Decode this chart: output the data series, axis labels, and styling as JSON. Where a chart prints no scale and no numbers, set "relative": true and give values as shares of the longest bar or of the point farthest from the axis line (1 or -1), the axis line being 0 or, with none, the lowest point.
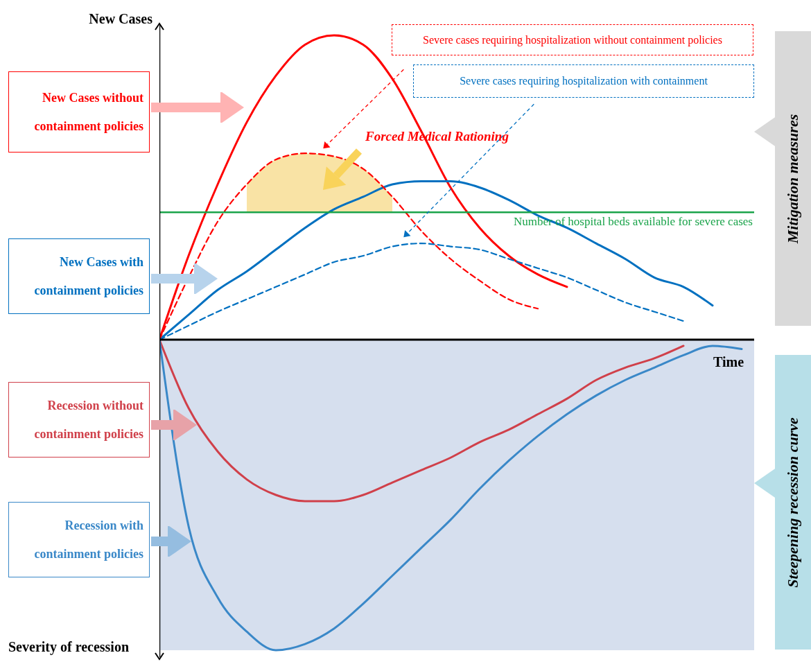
{
  "chart_data": {
    "type": "line",
    "relative": true,
    "xlabel": "Time",
    "ylabel": "New Cases",
    "categories": [
      null,
      null,
      null,
      null,
      null,
      null,
      null,
      null,
      null,
      null,
      null,
      null,
      null,
      null,
      null,
      null,
      null,
      null,
      null,
      null,
      null
    ],
    "series": [
      {
        "name": "New Cases without containment policies",
        "color": "#ff0000",
        "line_style": "solid",
        "values": [
          0,
          0.27,
          0.5,
          0.7,
          0.85,
          0.95,
          0.98,
          0.95,
          0.84,
          0.67,
          0.49,
          0.36,
          0.27,
          0.21,
          0.17,
          null,
          null,
          null,
          null,
          null,
          null
        ]
      },
      {
        "name": "New Cases with containment policies",
        "color": "#0070c0",
        "line_style": "solid",
        "values": [
          0,
          0.08,
          0.16,
          0.22,
          0.29,
          0.36,
          0.42,
          0.46,
          0.5,
          0.51,
          0.51,
          0.49,
          0.45,
          0.4,
          0.36,
          0.31,
          0.26,
          0.2,
          0.17,
          0.11,
          null
        ]
      },
      {
        "name": "Severe cases requiring hospitalization without containment policies",
        "color": "#ff0000",
        "line_style": "dashed",
        "values": [
          0,
          0.2,
          0.38,
          0.5,
          0.58,
          0.6,
          0.59,
          0.55,
          0.46,
          0.35,
          0.26,
          0.19,
          0.13,
          0.1,
          null,
          null,
          null,
          null,
          null,
          null,
          null
        ]
      },
      {
        "name": "Severe cases requiring hospitalization with containment",
        "color": "#0070c0",
        "line_style": "dashed",
        "values": [
          0,
          0.045,
          0.09,
          0.13,
          0.17,
          0.21,
          0.25,
          0.27,
          0.3,
          0.31,
          0.3,
          0.29,
          0.26,
          0.23,
          0.2,
          0.16,
          0.12,
          0.09,
          0.06,
          null,
          null
        ]
      },
      {
        "name": "Recession without containment policies",
        "color": "#d0404a",
        "line_style": "solid",
        "values": [
          0,
          -0.22,
          -0.36,
          -0.45,
          -0.5,
          -0.52,
          -0.52,
          -0.5,
          -0.46,
          -0.42,
          -0.38,
          -0.33,
          -0.29,
          -0.24,
          -0.19,
          -0.13,
          -0.09,
          -0.06,
          -0.02,
          null,
          null
        ]
      },
      {
        "name": "Recession with containment policies",
        "color": "#3a88c8",
        "line_style": "solid",
        "values": [
          0,
          -0.6,
          -0.83,
          -0.94,
          -1,
          -0.98,
          -0.93,
          -0.85,
          -0.76,
          -0.67,
          -0.58,
          -0.48,
          -0.39,
          -0.31,
          -0.24,
          -0.18,
          -0.13,
          -0.09,
          -0.05,
          -0.02,
          -0.03
        ]
      },
      {
        "type": "area",
        "color": "#f2c037",
        "values": [
          null,
          null,
          null,
          0.5,
          0.58,
          0.6,
          0.59,
          0.55,
          0.46,
          null,
          null,
          null,
          null,
          null,
          null,
          null,
          null,
          null,
          null,
          null,
          null
        ]
      }
    ],
    "ref_lines": [
      {
        "axis": "y",
        "value": 0.41,
        "label": "Number of hospital beds available for severe cases",
        "color": "#1aa34a"
      }
    ],
    "bands": [
      {
        "axis": "y",
        "from": -1,
        "to": 0,
        "color": "#d6dfee"
      }
    ],
    "annotations": [
      "Forced Medical Rationing",
      "Mitigation measures",
      "Steepening recession curve",
      "Severity of recession"
    ]
  }
}
